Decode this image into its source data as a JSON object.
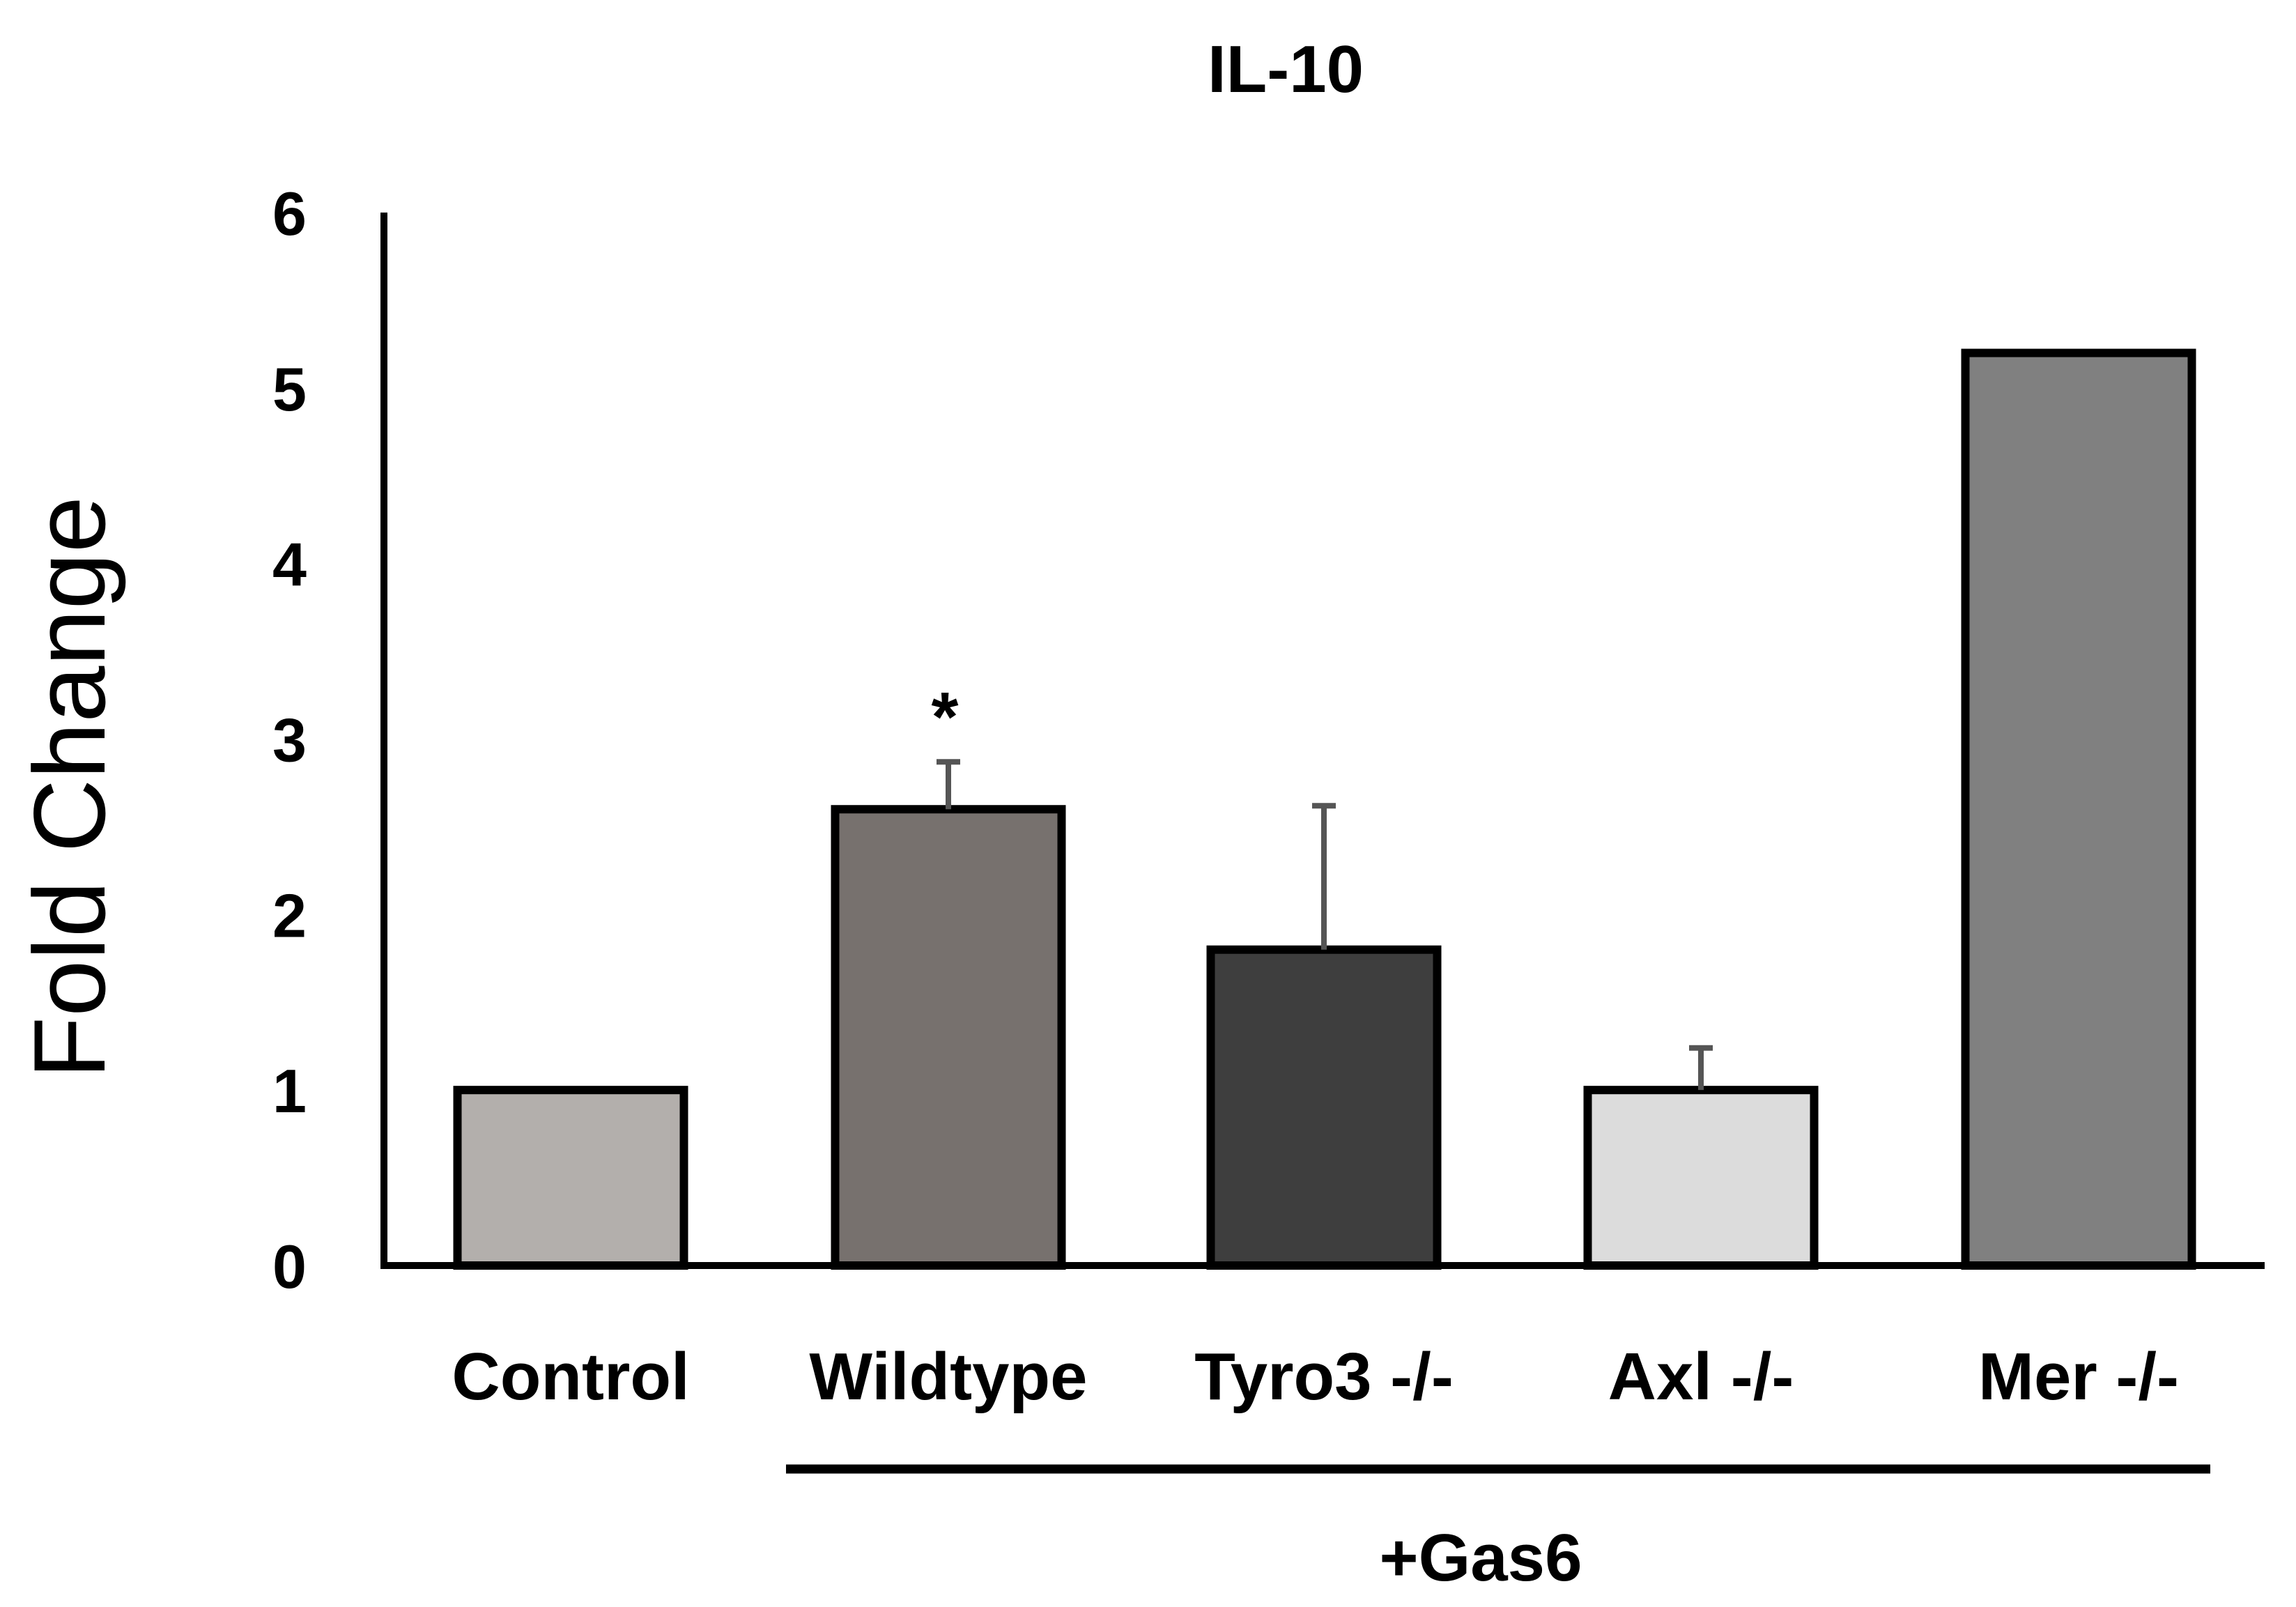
{
  "chart_data": {
    "type": "bar",
    "title": "IL-10",
    "xlabel": "",
    "ylabel": "Fold Change",
    "ylim": [
      0,
      6
    ],
    "yticks": [
      "0",
      "1",
      "2",
      "3",
      "4",
      "5",
      "6"
    ],
    "categories": [
      "Control",
      "Wildtype",
      "Tyro3 -/-",
      "Axl -/-",
      "Mer -/-"
    ],
    "values": [
      1.0,
      2.6,
      1.8,
      1.0,
      5.2
    ],
    "errors": [
      0.0,
      0.27,
      0.82,
      0.24,
      0.0
    ],
    "bar_colors": [
      "#b3afac",
      "#77716e",
      "#3e3e3e",
      "#dcdcdc",
      "#808080"
    ],
    "significance": [
      {
        "category": "Wildtype",
        "label": "*"
      }
    ],
    "group_annotation": {
      "label": "+Gas6",
      "from": "Wildtype",
      "to": "Mer -/-"
    },
    "grid": false,
    "legend": "none"
  }
}
